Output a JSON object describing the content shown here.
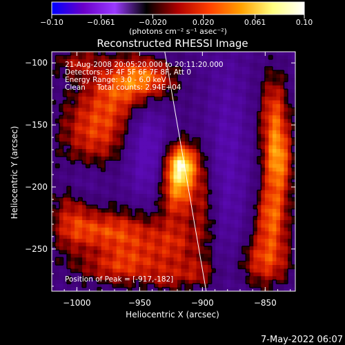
{
  "chart_data": {
    "type": "heatmap",
    "title": "Reconstructed RHESSI Image",
    "xlabel": "Heliocentric X (arcsec)",
    "ylabel": "Heliocentric Y (arcsec)",
    "xlim": [
      -1020,
      -826
    ],
    "ylim": [
      -284,
      -91
    ],
    "x_ticks": [
      -1000,
      -950,
      -900,
      -850
    ],
    "x_tick_labels": [
      "−1000",
      "−950",
      "−900",
      "−850"
    ],
    "y_ticks": [
      -100,
      -150,
      -200,
      -250
    ],
    "y_tick_labels": [
      "−100",
      "−150",
      "−200",
      "−250"
    ],
    "colorbar": {
      "range": [
        -0.1,
        0.1
      ],
      "ticks": [
        -0.1,
        -0.061,
        -0.02,
        0.02,
        0.061,
        0.1
      ],
      "tick_labels": [
        "−0.10",
        "−0.061",
        "−0.020",
        "0.020",
        "0.061",
        "0.10"
      ],
      "units_label": "(photons cm⁻² s⁻¹ asec⁻²)",
      "colors": [
        "#0000ff",
        "#6a00c8",
        "#9a3aff",
        "#000000",
        "#b00000",
        "#ff4000",
        "#ffa000",
        "#ffff80",
        "#ffffff"
      ]
    },
    "annotations": [
      "21-Aug-2008 20:05:20.000 to 20:11:20.000",
      "Detectors: 3F 4F 5F 6F 7F 8F, Att 0",
      "Energy Range: 3.0 - 6.0 keV",
      "Clean     Total counts: 2.94E+04"
    ],
    "peak_label": "Position of Peak = [-917,-182]",
    "peak": [
      -917,
      -182
    ],
    "limb_line": [
      [
        -930,
        -91
      ],
      [
        -897,
        -284
      ]
    ],
    "sources": [
      {
        "x": -960,
        "y": -120,
        "sx": 22,
        "sy": 18,
        "a": 0.055
      },
      {
        "x": -985,
        "y": -155,
        "sx": 20,
        "sy": 20,
        "a": 0.05
      },
      {
        "x": -945,
        "y": -112,
        "sx": 14,
        "sy": 10,
        "a": 0.045
      },
      {
        "x": -1005,
        "y": -225,
        "sx": 12,
        "sy": 20,
        "a": 0.035
      },
      {
        "x": -985,
        "y": -235,
        "sx": 18,
        "sy": 10,
        "a": 0.035
      },
      {
        "x": -955,
        "y": -240,
        "sx": 20,
        "sy": 16,
        "a": 0.045
      },
      {
        "x": -965,
        "y": -265,
        "sx": 25,
        "sy": 10,
        "a": 0.04
      },
      {
        "x": -917,
        "y": -182,
        "sx": 9,
        "sy": 12,
        "a": 0.1
      },
      {
        "x": -920,
        "y": -205,
        "sx": 10,
        "sy": 14,
        "a": 0.06
      },
      {
        "x": -920,
        "y": -245,
        "sx": 14,
        "sy": 14,
        "a": 0.035
      },
      {
        "x": -905,
        "y": -270,
        "sx": 12,
        "sy": 8,
        "a": 0.03
      },
      {
        "x": -898,
        "y": -215,
        "sx": 7,
        "sy": 30,
        "a": 0.03
      },
      {
        "x": -843,
        "y": -140,
        "sx": 8,
        "sy": 22,
        "a": 0.05
      },
      {
        "x": -840,
        "y": -180,
        "sx": 8,
        "sy": 20,
        "a": 0.07
      },
      {
        "x": -845,
        "y": -225,
        "sx": 9,
        "sy": 18,
        "a": 0.06
      },
      {
        "x": -850,
        "y": -260,
        "sx": 14,
        "sy": 14,
        "a": 0.05
      },
      {
        "x": -1000,
        "y": -100,
        "sx": 12,
        "sy": 8,
        "a": 0.03
      },
      {
        "x": -930,
        "y": -275,
        "sx": 10,
        "sy": 8,
        "a": 0.02
      }
    ],
    "sinks": [
      {
        "x": -945,
        "y": -165,
        "sx": 12,
        "sy": 35,
        "a": 0.045
      },
      {
        "x": -880,
        "y": -175,
        "sx": 12,
        "sy": 60,
        "a": 0.03
      },
      {
        "x": -995,
        "y": -195,
        "sx": 12,
        "sy": 10,
        "a": 0.02
      }
    ],
    "grid": false
  },
  "footer_date": "7-May-2022 06:07"
}
